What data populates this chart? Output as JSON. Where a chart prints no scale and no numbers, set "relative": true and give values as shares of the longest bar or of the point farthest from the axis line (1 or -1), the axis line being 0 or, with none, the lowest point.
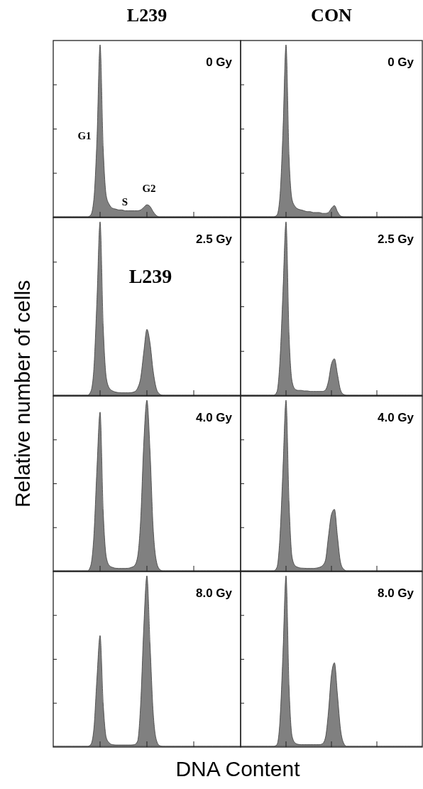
{
  "chart_data": [
    {
      "type": "area",
      "title": "L239",
      "ylabel": "Relative number of cells",
      "relative": true,
      "annotations": [
        "0 Gy",
        "G1",
        "S",
        "G2"
      ],
      "categories": [
        null,
        null,
        null,
        null,
        null,
        null,
        null,
        null,
        null,
        null,
        null,
        null,
        null,
        null,
        null,
        null,
        null,
        null,
        null,
        null,
        null,
        null,
        null,
        null,
        null,
        null,
        null,
        null,
        null,
        null,
        null,
        null,
        null,
        null,
        null,
        null,
        null,
        null,
        null,
        null,
        null,
        null,
        null,
        null,
        null,
        null,
        null,
        null,
        null,
        null,
        null,
        null,
        null,
        null,
        null,
        null,
        null,
        null,
        null,
        null,
        null
      ],
      "series": [
        {
          "color": "#808080",
          "values": [
            0,
            0,
            0,
            0,
            0,
            0,
            0,
            0,
            0,
            0,
            0,
            0,
            0.01,
            0.1,
            0.45,
            1,
            0.4,
            0.12,
            0.07,
            0.05,
            0.045,
            0.04,
            0.04,
            0.035,
            0.035,
            0.035,
            0.035,
            0.035,
            0.04,
            0.055,
            0.07,
            0.06,
            0.03,
            0.008,
            0,
            0,
            0,
            0,
            0,
            0,
            0,
            0,
            0,
            0,
            0,
            0,
            0,
            0,
            0,
            0,
            0,
            0,
            0,
            0,
            0,
            0,
            0,
            0,
            0,
            0,
            0
          ]
        }
      ]
    },
    {
      "type": "area",
      "title": "CON",
      "relative": true,
      "annotations": [
        "0 Gy"
      ],
      "categories": [
        null,
        null,
        null,
        null,
        null,
        null,
        null,
        null,
        null,
        null,
        null,
        null,
        null,
        null,
        null,
        null,
        null,
        null,
        null,
        null,
        null,
        null,
        null,
        null,
        null,
        null,
        null,
        null,
        null,
        null,
        null,
        null,
        null,
        null,
        null,
        null,
        null,
        null,
        null,
        null,
        null,
        null,
        null,
        null,
        null,
        null,
        null,
        null,
        null,
        null,
        null,
        null,
        null,
        null,
        null,
        null,
        null,
        null,
        null,
        null,
        null
      ],
      "series": [
        {
          "color": "#808080",
          "values": [
            0,
            0,
            0,
            0,
            0,
            0,
            0,
            0,
            0,
            0,
            0,
            0,
            0.01,
            0.12,
            0.5,
            1,
            0.35,
            0.1,
            0.06,
            0.045,
            0.04,
            0.035,
            0.03,
            0.03,
            0.025,
            0.025,
            0.025,
            0.02,
            0.02,
            0.025,
            0.05,
            0.065,
            0.03,
            0.005,
            0,
            0,
            0,
            0,
            0,
            0,
            0,
            0,
            0,
            0,
            0,
            0,
            0,
            0,
            0,
            0,
            0,
            0,
            0,
            0,
            0,
            0,
            0,
            0,
            0,
            0,
            0
          ]
        }
      ]
    },
    {
      "type": "area",
      "relative": true,
      "annotations": [
        "2.5 Gy",
        "L239"
      ],
      "categories": [
        null,
        null,
        null,
        null,
        null,
        null,
        null,
        null,
        null,
        null,
        null,
        null,
        null,
        null,
        null,
        null,
        null,
        null,
        null,
        null,
        null,
        null,
        null,
        null,
        null,
        null,
        null,
        null,
        null,
        null,
        null,
        null,
        null,
        null,
        null,
        null,
        null,
        null,
        null,
        null,
        null,
        null,
        null,
        null,
        null,
        null,
        null,
        null,
        null,
        null,
        null,
        null,
        null,
        null,
        null,
        null,
        null,
        null,
        null,
        null,
        null
      ],
      "series": [
        {
          "color": "#808080",
          "values": [
            0,
            0,
            0,
            0,
            0,
            0,
            0,
            0,
            0,
            0,
            0,
            0,
            0.02,
            0.15,
            0.55,
            1,
            0.4,
            0.1,
            0.04,
            0.025,
            0.018,
            0.015,
            0.014,
            0.014,
            0.014,
            0.015,
            0.02,
            0.04,
            0.1,
            0.25,
            0.38,
            0.3,
            0.14,
            0.04,
            0.008,
            0,
            0,
            0,
            0,
            0,
            0,
            0,
            0,
            0,
            0,
            0,
            0,
            0,
            0,
            0,
            0,
            0,
            0,
            0,
            0,
            0,
            0,
            0,
            0,
            0,
            0
          ]
        }
      ]
    },
    {
      "type": "area",
      "relative": true,
      "annotations": [
        "2.5 Gy"
      ],
      "categories": [
        null,
        null,
        null,
        null,
        null,
        null,
        null,
        null,
        null,
        null,
        null,
        null,
        null,
        null,
        null,
        null,
        null,
        null,
        null,
        null,
        null,
        null,
        null,
        null,
        null,
        null,
        null,
        null,
        null,
        null,
        null,
        null,
        null,
        null,
        null,
        null,
        null,
        null,
        null,
        null,
        null,
        null,
        null,
        null,
        null,
        null,
        null,
        null,
        null,
        null,
        null,
        null,
        null,
        null,
        null,
        null,
        null,
        null,
        null,
        null,
        null
      ],
      "series": [
        {
          "color": "#808080",
          "values": [
            0,
            0,
            0,
            0,
            0,
            0,
            0,
            0,
            0,
            0,
            0,
            0,
            0.02,
            0.2,
            0.6,
            1,
            0.35,
            0.08,
            0.035,
            0.028,
            0.028,
            0.025,
            0.025,
            0.022,
            0.022,
            0.022,
            0.022,
            0.022,
            0.03,
            0.08,
            0.18,
            0.21,
            0.12,
            0.03,
            0.005,
            0,
            0,
            0,
            0,
            0,
            0,
            0,
            0,
            0,
            0,
            0,
            0,
            0,
            0,
            0,
            0,
            0,
            0,
            0,
            0,
            0,
            0,
            0,
            0,
            0,
            0
          ]
        }
      ]
    },
    {
      "type": "area",
      "relative": true,
      "annotations": [
        "4.0 Gy"
      ],
      "categories": [
        null,
        null,
        null,
        null,
        null,
        null,
        null,
        null,
        null,
        null,
        null,
        null,
        null,
        null,
        null,
        null,
        null,
        null,
        null,
        null,
        null,
        null,
        null,
        null,
        null,
        null,
        null,
        null,
        null,
        null,
        null,
        null,
        null,
        null,
        null,
        null,
        null,
        null,
        null,
        null,
        null,
        null,
        null,
        null,
        null,
        null,
        null,
        null,
        null,
        null,
        null,
        null,
        null,
        null,
        null,
        null,
        null,
        null,
        null,
        null,
        null
      ],
      "series": [
        {
          "color": "#808080",
          "values": [
            0,
            0,
            0,
            0,
            0,
            0,
            0,
            0,
            0,
            0,
            0,
            0,
            0.03,
            0.2,
            0.6,
            0.93,
            0.35,
            0.08,
            0.03,
            0.02,
            0.015,
            0.014,
            0.014,
            0.014,
            0.015,
            0.02,
            0.03,
            0.08,
            0.3,
            0.75,
            1,
            0.7,
            0.25,
            0.06,
            0.01,
            0,
            0,
            0,
            0,
            0,
            0,
            0,
            0,
            0,
            0,
            0,
            0,
            0,
            0,
            0,
            0,
            0,
            0,
            0,
            0,
            0,
            0,
            0,
            0,
            0,
            0
          ]
        }
      ]
    },
    {
      "type": "area",
      "relative": true,
      "annotations": [
        "4.0 Gy"
      ],
      "categories": [
        null,
        null,
        null,
        null,
        null,
        null,
        null,
        null,
        null,
        null,
        null,
        null,
        null,
        null,
        null,
        null,
        null,
        null,
        null,
        null,
        null,
        null,
        null,
        null,
        null,
        null,
        null,
        null,
        null,
        null,
        null,
        null,
        null,
        null,
        null,
        null,
        null,
        null,
        null,
        null,
        null,
        null,
        null,
        null,
        null,
        null,
        null,
        null,
        null,
        null,
        null,
        null,
        null,
        null,
        null,
        null,
        null,
        null,
        null,
        null,
        null
      ],
      "series": [
        {
          "color": "#808080",
          "values": [
            0,
            0,
            0,
            0,
            0,
            0,
            0,
            0,
            0,
            0,
            0,
            0,
            0.02,
            0.2,
            0.6,
            1,
            0.4,
            0.08,
            0.03,
            0.02,
            0.016,
            0.015,
            0.014,
            0.014,
            0.014,
            0.016,
            0.02,
            0.03,
            0.06,
            0.2,
            0.33,
            0.36,
            0.2,
            0.05,
            0.01,
            0,
            0,
            0,
            0,
            0,
            0,
            0,
            0,
            0,
            0,
            0,
            0,
            0,
            0,
            0,
            0,
            0,
            0,
            0,
            0,
            0,
            0,
            0,
            0,
            0,
            0
          ]
        }
      ]
    },
    {
      "type": "area",
      "xlabel": "DNA Content",
      "relative": true,
      "annotations": [
        "8.0 Gy"
      ],
      "categories": [
        null,
        null,
        null,
        null,
        null,
        null,
        null,
        null,
        null,
        null,
        null,
        null,
        null,
        null,
        null,
        null,
        null,
        null,
        null,
        null,
        null,
        null,
        null,
        null,
        null,
        null,
        null,
        null,
        null,
        null,
        null,
        null,
        null,
        null,
        null,
        null,
        null,
        null,
        null,
        null,
        null,
        null,
        null,
        null,
        null,
        null,
        null,
        null,
        null,
        null,
        null,
        null,
        null,
        null,
        null,
        null,
        null,
        null,
        null,
        null,
        null
      ],
      "series": [
        {
          "color": "#808080",
          "values": [
            0,
            0,
            0,
            0,
            0,
            0,
            0,
            0,
            0,
            0,
            0,
            0,
            0.01,
            0.1,
            0.4,
            0.65,
            0.25,
            0.05,
            0.02,
            0.01,
            0.008,
            0.008,
            0.008,
            0.008,
            0.008,
            0.008,
            0.01,
            0.03,
            0.25,
            0.7,
            1,
            0.6,
            0.2,
            0.04,
            0.005,
            0,
            0,
            0,
            0,
            0,
            0,
            0,
            0,
            0,
            0,
            0,
            0,
            0,
            0,
            0,
            0,
            0,
            0,
            0,
            0,
            0,
            0,
            0,
            0,
            0,
            0
          ]
        }
      ]
    },
    {
      "type": "area",
      "relative": true,
      "annotations": [
        "8.0 Gy"
      ],
      "categories": [
        null,
        null,
        null,
        null,
        null,
        null,
        null,
        null,
        null,
        null,
        null,
        null,
        null,
        null,
        null,
        null,
        null,
        null,
        null,
        null,
        null,
        null,
        null,
        null,
        null,
        null,
        null,
        null,
        null,
        null,
        null,
        null,
        null,
        null,
        null,
        null,
        null,
        null,
        null,
        null,
        null,
        null,
        null,
        null,
        null,
        null,
        null,
        null,
        null,
        null,
        null,
        null,
        null,
        null,
        null,
        null,
        null,
        null,
        null,
        null,
        null
      ],
      "series": [
        {
          "color": "#808080",
          "values": [
            0,
            0,
            0,
            0,
            0,
            0,
            0,
            0,
            0,
            0,
            0,
            0,
            0.01,
            0.15,
            0.55,
            1,
            0.35,
            0.06,
            0.02,
            0.012,
            0.01,
            0.01,
            0.01,
            0.01,
            0.01,
            0.01,
            0.01,
            0.015,
            0.05,
            0.2,
            0.42,
            0.49,
            0.3,
            0.1,
            0.02,
            0,
            0,
            0,
            0,
            0,
            0,
            0,
            0,
            0,
            0,
            0,
            0,
            0,
            0,
            0,
            0,
            0,
            0,
            0,
            0,
            0,
            0,
            0,
            0,
            0,
            0
          ]
        }
      ]
    }
  ]
}
